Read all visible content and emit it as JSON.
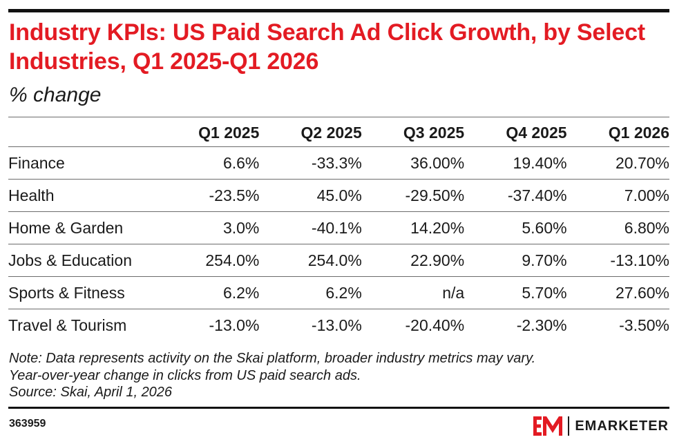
{
  "chart_title": "Industry KPIs: US Paid Search Ad Click Growth, by Select Industries, Q1 2025-Q1 2026",
  "chart_subtitle": "% change",
  "table": {
    "headers": [
      "",
      "Q1 2025",
      "Q2 2025",
      "Q3 2025",
      "Q4 2025",
      "Q1 2026"
    ],
    "rows": [
      {
        "label": "Finance",
        "values": [
          "6.6%",
          "-33.3%",
          "36.00%",
          "19.40%",
          "20.70%"
        ]
      },
      {
        "label": "Health",
        "values": [
          "-23.5%",
          "45.0%",
          "-29.50%",
          "-37.40%",
          "7.00%"
        ]
      },
      {
        "label": "Home & Garden",
        "values": [
          "3.0%",
          "-40.1%",
          "14.20%",
          "5.60%",
          "6.80%"
        ]
      },
      {
        "label": "Jobs & Education",
        "values": [
          "254.0%",
          "254.0%",
          "22.90%",
          "9.70%",
          "-13.10%"
        ]
      },
      {
        "label": "Sports & Fitness",
        "values": [
          "6.2%",
          "6.2%",
          "n/a",
          "5.70%",
          "27.60%"
        ]
      },
      {
        "label": "Travel & Tourism",
        "values": [
          "-13.0%",
          "-13.0%",
          "-20.40%",
          "-2.30%",
          "-3.50%"
        ]
      }
    ]
  },
  "notes": {
    "line1": "Note: Data represents activity on the Skai platform, broader industry metrics may vary.",
    "line2": "Year-over-year change in clicks from US paid search ads.",
    "source": "Source: Skai, April 1, 2026"
  },
  "footer": {
    "chart_id": "363959",
    "brand_name": "EMARKETER"
  },
  "colors": {
    "title": "#e31b23",
    "logo": "#e31b23",
    "text": "#1a1a1a",
    "rule": "#111111"
  },
  "chart_data": {
    "type": "table",
    "title": "Industry KPIs: US Paid Search Ad Click Growth, by Select Industries, Q1 2025-Q1 2026",
    "subtitle": "% change",
    "columns": [
      "Q1 2025",
      "Q2 2025",
      "Q3 2025",
      "Q4 2025",
      "Q1 2026"
    ],
    "series": [
      {
        "name": "Finance",
        "values": [
          6.6,
          -33.3,
          36.0,
          19.4,
          20.7
        ]
      },
      {
        "name": "Health",
        "values": [
          -23.5,
          45.0,
          -29.5,
          -37.4,
          7.0
        ]
      },
      {
        "name": "Home & Garden",
        "values": [
          3.0,
          -40.1,
          14.2,
          5.6,
          6.8
        ]
      },
      {
        "name": "Jobs & Education",
        "values": [
          254.0,
          254.0,
          22.9,
          9.7,
          -13.1
        ]
      },
      {
        "name": "Sports & Fitness",
        "values": [
          6.2,
          6.2,
          null,
          5.7,
          27.6
        ]
      },
      {
        "name": "Travel & Tourism",
        "values": [
          -13.0,
          -13.0,
          -20.4,
          -2.3,
          -3.5
        ]
      }
    ]
  }
}
